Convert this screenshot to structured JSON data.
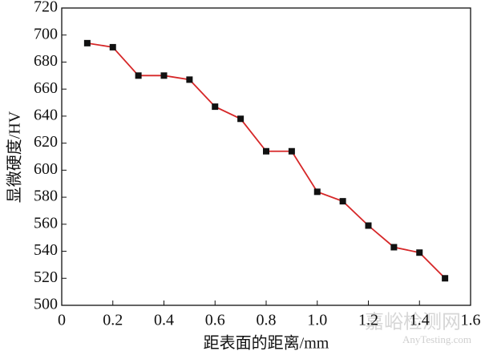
{
  "chart_data": {
    "type": "line",
    "xlabel": "距表面的距离/mm",
    "ylabel": "显微硬度/HV",
    "x": [
      0.1,
      0.2,
      0.3,
      0.4,
      0.5,
      0.6,
      0.7,
      0.8,
      0.9,
      1.0,
      1.1,
      1.2,
      1.3,
      1.4,
      1.5
    ],
    "series": [
      {
        "color": "#d62728",
        "marker_color": "#111111",
        "values": [
          694,
          691,
          670,
          670,
          667,
          647,
          638,
          614,
          614,
          584,
          577,
          559,
          543,
          539,
          520
        ]
      }
    ],
    "xlim": [
      0,
      1.6
    ],
    "xticks": [
      0,
      0.2,
      0.4,
      0.6,
      0.8,
      {
        "value": 1,
        "label": "1.0"
      },
      1.2,
      1.4,
      1.6
    ],
    "ylim": [
      500,
      720
    ],
    "yticks": [
      500,
      520,
      540,
      560,
      580,
      600,
      620,
      640,
      660,
      680,
      700,
      720
    ],
    "watermark": "嘉峪检测网",
    "watermark_sub": "AnyTesting.com"
  }
}
